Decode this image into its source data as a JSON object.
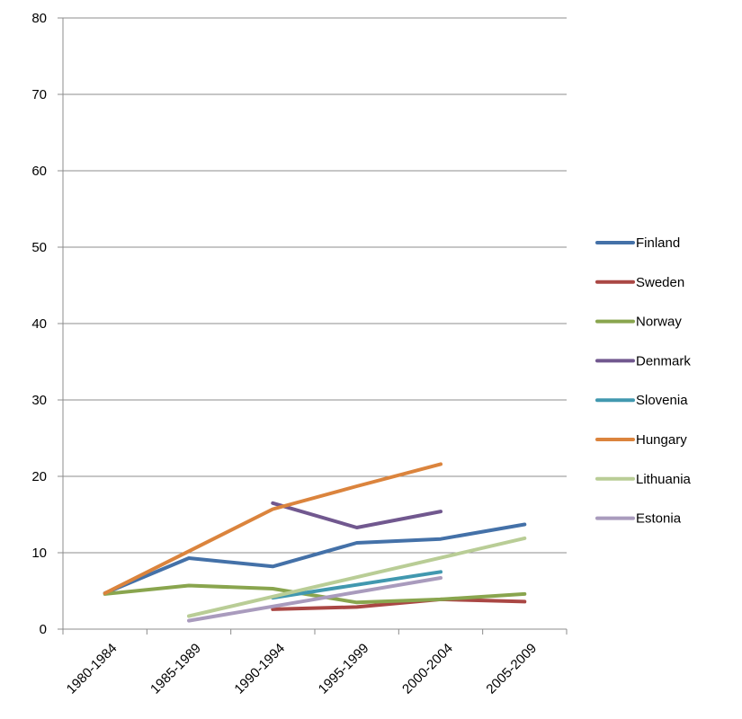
{
  "chart_data": {
    "type": "line",
    "title": "",
    "xlabel": "",
    "ylabel": "",
    "categories": [
      "1980-1984",
      "1985-1989",
      "1990-1994",
      "1995-1999",
      "2000-2004",
      "2005-2009"
    ],
    "ylim": [
      0,
      80
    ],
    "yticks": [
      0,
      10,
      20,
      30,
      40,
      50,
      60,
      70,
      80
    ],
    "grid": true,
    "legend_position": "right",
    "series": [
      {
        "name": "Finland",
        "color": "#4471A8",
        "values": [
          4.7,
          9.3,
          8.2,
          11.3,
          11.8,
          13.7
        ]
      },
      {
        "name": "Sweden",
        "color": "#AA4744",
        "values": [
          null,
          null,
          2.6,
          2.9,
          3.9,
          3.6
        ]
      },
      {
        "name": "Norway",
        "color": "#89A54E",
        "values": [
          4.6,
          5.7,
          5.3,
          3.5,
          3.9,
          4.6
        ]
      },
      {
        "name": "Denmark",
        "color": "#71588F",
        "values": [
          null,
          null,
          16.5,
          13.3,
          15.4,
          null
        ]
      },
      {
        "name": "Slovenia",
        "color": "#4198AF",
        "values": [
          null,
          null,
          4.1,
          null,
          7.5,
          null
        ]
      },
      {
        "name": "Hungary",
        "color": "#DB843D",
        "values": [
          4.7,
          10.2,
          15.7,
          18.7,
          21.6,
          null
        ]
      },
      {
        "name": "Lithuania",
        "color": "#B9CD96",
        "values": [
          null,
          1.7,
          null,
          null,
          null,
          11.9
        ]
      },
      {
        "name": "Estonia",
        "color": "#A99BBD",
        "values": [
          null,
          1.1,
          null,
          null,
          6.7,
          null
        ]
      }
    ]
  }
}
